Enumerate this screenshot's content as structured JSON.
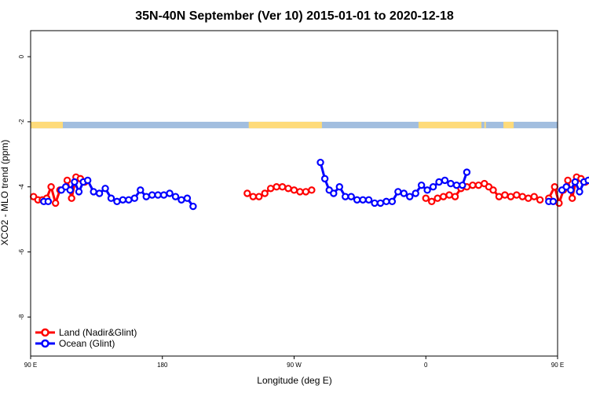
{
  "chart_data": {
    "type": "line",
    "title": "35N-40N September (Ver 10)   2015-01-01 to 2020-12-18",
    "xlabel": "Longitude (deg E)",
    "ylabel": "XCO2 - MLO trend (ppm)",
    "xlim": [
      90,
      450
    ],
    "ylim": [
      -9.2,
      0.8
    ],
    "x_ticks": [
      {
        "value": 90,
        "label": "90 E"
      },
      {
        "value": 180,
        "label": "180"
      },
      {
        "value": 270,
        "label": "90 W"
      },
      {
        "value": 360,
        "label": "0"
      },
      {
        "value": 450,
        "label": "90 E"
      },
      {
        "value": 540,
        "label": "180"
      }
    ],
    "y_ticks": [
      0,
      -2,
      -4,
      -6,
      -8
    ],
    "grid": false,
    "legend_position": "bottom-left",
    "colors": {
      "land": "#ff0000",
      "ocean": "#0000ff",
      "land_mask": "#fedb7a",
      "ocean_mask": "#a2bedf"
    },
    "landmask_y": -2.1,
    "land_segments": [
      [
        90,
        112
      ],
      [
        239,
        289
      ],
      [
        355,
        398
      ],
      [
        400,
        401
      ],
      [
        413,
        420
      ],
      [
        472,
        483
      ],
      [
        487,
        502
      ],
      [
        504,
        507
      ]
    ],
    "series": [
      {
        "name": "Land (Nadir&Glint)",
        "color": "#ff0000",
        "segments": [
          [
            [
              92,
              -4.3
            ],
            [
              95,
              -4.4
            ],
            [
              98,
              -4.4
            ],
            [
              101,
              -4.35
            ],
            [
              104,
              -4.0
            ],
            [
              107,
              -4.5
            ],
            [
              110,
              -4.1
            ]
          ],
          [
            [
              115,
              -3.8
            ],
            [
              118,
              -4.35
            ],
            [
              121,
              -3.7
            ],
            [
              124,
              -3.75
            ],
            [
              127,
              -3.85
            ]
          ],
          [
            [
              238,
              -4.2
            ],
            [
              242,
              -4.3
            ],
            [
              246,
              -4.3
            ],
            [
              250,
              -4.2
            ],
            [
              254,
              -4.05
            ],
            [
              258,
              -4.0
            ],
            [
              262,
              -4.0
            ],
            [
              266,
              -4.05
            ],
            [
              270,
              -4.1
            ],
            [
              274,
              -4.15
            ],
            [
              278,
              -4.15
            ],
            [
              282,
              -4.1
            ]
          ],
          [
            [
              360,
              -4.35
            ],
            [
              364,
              -4.45
            ],
            [
              368,
              -4.35
            ],
            [
              372,
              -4.3
            ],
            [
              376,
              -4.25
            ],
            [
              380,
              -4.3
            ],
            [
              384,
              -4.05
            ],
            [
              388,
              -4.0
            ],
            [
              392,
              -3.95
            ],
            [
              396,
              -3.95
            ],
            [
              400,
              -3.9
            ],
            [
              403,
              -4.0
            ],
            [
              406,
              -4.1
            ],
            [
              410,
              -4.3
            ],
            [
              414,
              -4.25
            ],
            [
              418,
              -4.3
            ],
            [
              422,
              -4.25
            ],
            [
              426,
              -4.3
            ],
            [
              430,
              -4.35
            ],
            [
              434,
              -4.3
            ],
            [
              438,
              -4.4
            ]
          ],
          [
            [
              444,
              -4.35
            ],
            [
              448,
              -4.0
            ],
            [
              451,
              -4.5
            ],
            [
              454,
              -4.1
            ],
            [
              457,
              -3.8
            ],
            [
              460,
              -4.35
            ],
            [
              463,
              -3.7
            ],
            [
              466,
              -3.75
            ],
            [
              469,
              -3.85
            ]
          ]
        ]
      },
      {
        "name": "Ocean (Glint)",
        "color": "#0000ff",
        "segments": [
          [
            [
              99,
              -4.45
            ],
            [
              102,
              -4.45
            ]
          ],
          [
            [
              111,
              -4.1
            ],
            [
              114,
              -4.0
            ],
            [
              117,
              -4.1
            ],
            [
              120,
              -3.85
            ],
            [
              123,
              -4.15
            ],
            [
              126,
              -3.85
            ],
            [
              129,
              -3.8
            ],
            [
              133,
              -4.15
            ],
            [
              137,
              -4.2
            ],
            [
              141,
              -4.05
            ],
            [
              145,
              -4.35
            ],
            [
              149,
              -4.45
            ],
            [
              153,
              -4.4
            ],
            [
              157,
              -4.4
            ],
            [
              161,
              -4.35
            ],
            [
              165,
              -4.1
            ],
            [
              169,
              -4.3
            ],
            [
              173,
              -4.25
            ],
            [
              177,
              -4.25
            ],
            [
              181,
              -4.25
            ],
            [
              185,
              -4.2
            ],
            [
              189,
              -4.3
            ],
            [
              193,
              -4.4
            ],
            [
              197,
              -4.35
            ],
            [
              201,
              -4.6
            ]
          ],
          [
            [
              288,
              -3.25
            ],
            [
              291,
              -3.75
            ],
            [
              294,
              -4.1
            ],
            [
              297,
              -4.2
            ],
            [
              301,
              -4.0
            ],
            [
              305,
              -4.3
            ],
            [
              309,
              -4.3
            ],
            [
              313,
              -4.4
            ],
            [
              317,
              -4.4
            ],
            [
              321,
              -4.4
            ],
            [
              325,
              -4.5
            ],
            [
              329,
              -4.5
            ],
            [
              333,
              -4.45
            ],
            [
              337,
              -4.45
            ],
            [
              341,
              -4.15
            ],
            [
              345,
              -4.2
            ],
            [
              349,
              -4.3
            ],
            [
              353,
              -4.2
            ],
            [
              357,
              -3.95
            ],
            [
              361,
              -4.1
            ],
            [
              365,
              -4.0
            ],
            [
              369,
              -3.85
            ],
            [
              373,
              -3.8
            ],
            [
              377,
              -3.9
            ],
            [
              381,
              -3.95
            ],
            [
              385,
              -3.95
            ],
            [
              388,
              -3.55
            ]
          ],
          [
            [
              444,
              -4.45
            ],
            [
              447,
              -4.45
            ]
          ],
          [
            [
              453,
              -4.1
            ],
            [
              456,
              -4.0
            ],
            [
              459,
              -4.1
            ],
            [
              462,
              -3.85
            ],
            [
              465,
              -4.15
            ],
            [
              468,
              -3.85
            ],
            [
              471,
              -3.8
            ],
            [
              475,
              -4.15
            ],
            [
              479,
              -4.2
            ],
            [
              483,
              -4.05
            ],
            [
              487,
              -4.35
            ],
            [
              491,
              -4.45
            ],
            [
              495,
              -4.4
            ]
          ]
        ]
      }
    ]
  }
}
